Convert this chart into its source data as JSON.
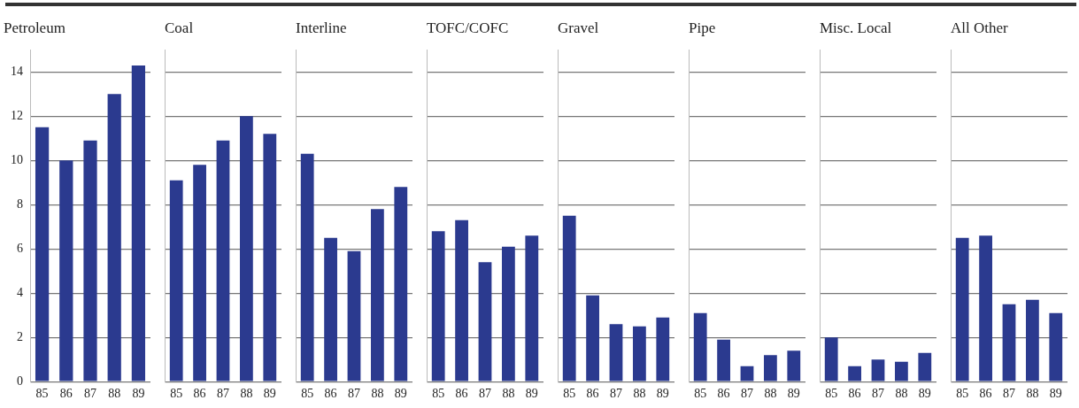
{
  "chart_data": [
    {
      "type": "bar",
      "title": "Petroleum",
      "categories": [
        "85",
        "86",
        "87",
        "88",
        "89"
      ],
      "values": [
        11.5,
        10.0,
        10.9,
        13.0,
        14.3
      ],
      "color": "#2b3a8f",
      "ylim": [
        0,
        15
      ],
      "yticks": [
        0,
        2,
        4,
        6,
        8,
        10,
        12,
        14
      ],
      "grid": "y"
    },
    {
      "type": "bar",
      "title": "Coal",
      "categories": [
        "85",
        "86",
        "87",
        "88",
        "89"
      ],
      "values": [
        9.1,
        9.8,
        10.9,
        12.0,
        11.2
      ],
      "color": "#2b3a8f",
      "ylim": [
        0,
        15
      ],
      "yticks": [
        0,
        2,
        4,
        6,
        8,
        10,
        12,
        14
      ],
      "grid": "y",
      "tick_labels": "x"
    },
    {
      "type": "bar",
      "title": "Interline",
      "categories": [
        "85",
        "86",
        "87",
        "88",
        "89"
      ],
      "values": [
        10.3,
        6.5,
        5.9,
        7.8,
        8.8
      ],
      "color": "#2b3a8f",
      "ylim": [
        0,
        15
      ],
      "yticks": [
        0,
        2,
        4,
        6,
        8,
        10,
        12,
        14
      ],
      "grid": "y",
      "tick_labels": "x"
    },
    {
      "type": "bar",
      "title": "TOFC/COFC",
      "categories": [
        "85",
        "86",
        "87",
        "88",
        "89"
      ],
      "values": [
        6.8,
        7.3,
        5.4,
        6.1,
        6.6
      ],
      "color": "#2b3a8f",
      "ylim": [
        0,
        15
      ],
      "yticks": [
        0,
        2,
        4,
        6,
        8,
        10,
        12,
        14
      ],
      "grid": "y",
      "tick_labels": "x"
    },
    {
      "type": "bar",
      "title": "Gravel",
      "categories": [
        "85",
        "86",
        "87",
        "88",
        "89"
      ],
      "values": [
        7.5,
        3.9,
        2.6,
        2.5,
        2.9
      ],
      "color": "#2b3a8f",
      "ylim": [
        0,
        15
      ],
      "yticks": [
        0,
        2,
        4,
        6,
        8,
        10,
        12,
        14
      ],
      "grid": "y",
      "tick_labels": "x"
    },
    {
      "type": "bar",
      "title": "Pipe",
      "categories": [
        "85",
        "86",
        "87",
        "88",
        "89"
      ],
      "values": [
        3.1,
        1.9,
        0.7,
        1.2,
        1.4
      ],
      "color": "#2b3a8f",
      "ylim": [
        0,
        15
      ],
      "yticks": [
        0,
        2,
        4,
        6,
        8,
        10,
        12,
        14
      ],
      "grid": "y",
      "tick_labels": "x"
    },
    {
      "type": "bar",
      "title": "Misc. Local",
      "categories": [
        "85",
        "86",
        "87",
        "88",
        "89"
      ],
      "values": [
        2.0,
        0.7,
        1.0,
        0.9,
        1.3
      ],
      "color": "#2b3a8f",
      "ylim": [
        0,
        15
      ],
      "yticks": [
        0,
        2,
        4,
        6,
        8,
        10,
        12,
        14
      ],
      "grid": "y",
      "tick_labels": "x"
    },
    {
      "type": "bar",
      "title": "All Other",
      "categories": [
        "85",
        "86",
        "87",
        "88",
        "89"
      ],
      "values": [
        6.5,
        6.6,
        3.5,
        3.7,
        3.1
      ],
      "color": "#2b3a8f",
      "ylim": [
        0,
        15
      ],
      "yticks": [
        0,
        2,
        4,
        6,
        8,
        10,
        12,
        14
      ],
      "grid": "y",
      "tick_labels": "x"
    }
  ]
}
